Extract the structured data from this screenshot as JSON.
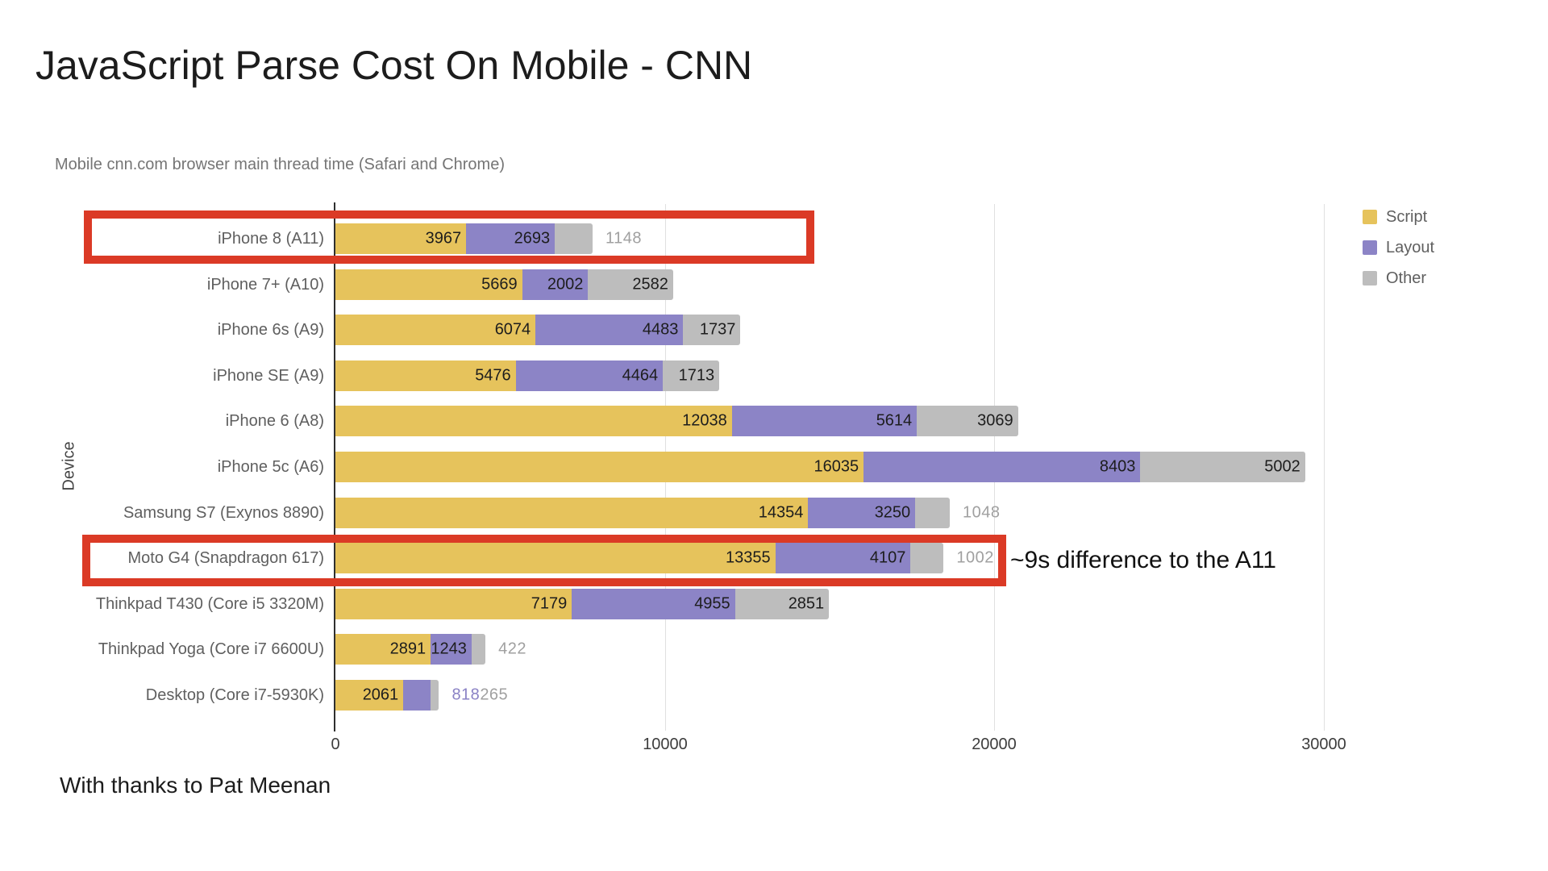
{
  "title": "JavaScript Parse Cost On Mobile - CNN",
  "subtitle": "Mobile cnn.com browser main thread time (Safari and Chrome)",
  "footer": "With thanks to Pat Meenan",
  "annotation": "~9s difference to the A11",
  "y_axis_title": "Device",
  "colors": {
    "script": "#E6C35C",
    "layout": "#8C84C6",
    "other": "#BDBDBD",
    "highlight_box": "#DB3A26",
    "label_inside": "#1D1D1D",
    "label_outside_other": "#A0A0A0",
    "label_outside_layout": "#8A82C5",
    "gridline": "#E0E0E0",
    "axis_line": "#2F2F2F"
  },
  "legend": [
    {
      "label": "Script",
      "color": "#E6C35C"
    },
    {
      "label": "Layout",
      "color": "#8C84C6"
    },
    {
      "label": "Other",
      "color": "#BDBDBD"
    }
  ],
  "chart_data": {
    "type": "bar",
    "orientation": "horizontal",
    "stacked": true,
    "title": "Mobile cnn.com browser main thread time (Safari and Chrome)",
    "xlabel": "",
    "ylabel": "Device",
    "xlim": [
      0,
      30000
    ],
    "x_ticks": [
      0,
      10000,
      20000,
      30000
    ],
    "grid": true,
    "legend_position": "right",
    "series_names": [
      "Script",
      "Layout",
      "Other"
    ],
    "rows": [
      {
        "device": "iPhone 8 (A11)",
        "values": [
          3967,
          2693,
          1148
        ],
        "outside_labels": [
          2
        ],
        "highlighted": true
      },
      {
        "device": "iPhone 7+ (A10)",
        "values": [
          5669,
          2002,
          2582
        ],
        "outside_labels": [],
        "highlighted": false
      },
      {
        "device": "iPhone 6s (A9)",
        "values": [
          6074,
          4483,
          1737
        ],
        "outside_labels": [],
        "highlighted": false
      },
      {
        "device": "iPhone SE (A9)",
        "values": [
          5476,
          4464,
          1713
        ],
        "outside_labels": [],
        "highlighted": false
      },
      {
        "device": "iPhone 6 (A8)",
        "values": [
          12038,
          5614,
          3069
        ],
        "outside_labels": [],
        "highlighted": false
      },
      {
        "device": "iPhone 5c (A6)",
        "values": [
          16035,
          8403,
          5002
        ],
        "outside_labels": [],
        "highlighted": false
      },
      {
        "device": "Samsung S7 (Exynos 8890)",
        "values": [
          14354,
          3250,
          1048
        ],
        "outside_labels": [
          2
        ],
        "highlighted": false
      },
      {
        "device": "Moto G4 (Snapdragon 617)",
        "values": [
          13355,
          4107,
          1002
        ],
        "outside_labels": [
          2
        ],
        "highlighted": true
      },
      {
        "device": "Thinkpad T430 (Core i5 3320M)",
        "values": [
          7179,
          4955,
          2851
        ],
        "outside_labels": [],
        "highlighted": false
      },
      {
        "device": "Thinkpad Yoga (Core i7 6600U)",
        "values": [
          2891,
          1243,
          422
        ],
        "outside_labels": [
          2
        ],
        "highlighted": false
      },
      {
        "device": "Desktop (Core i7-5930K)",
        "values": [
          2061,
          818,
          265
        ],
        "outside_labels": [
          1,
          2
        ],
        "highlighted": false
      }
    ]
  }
}
